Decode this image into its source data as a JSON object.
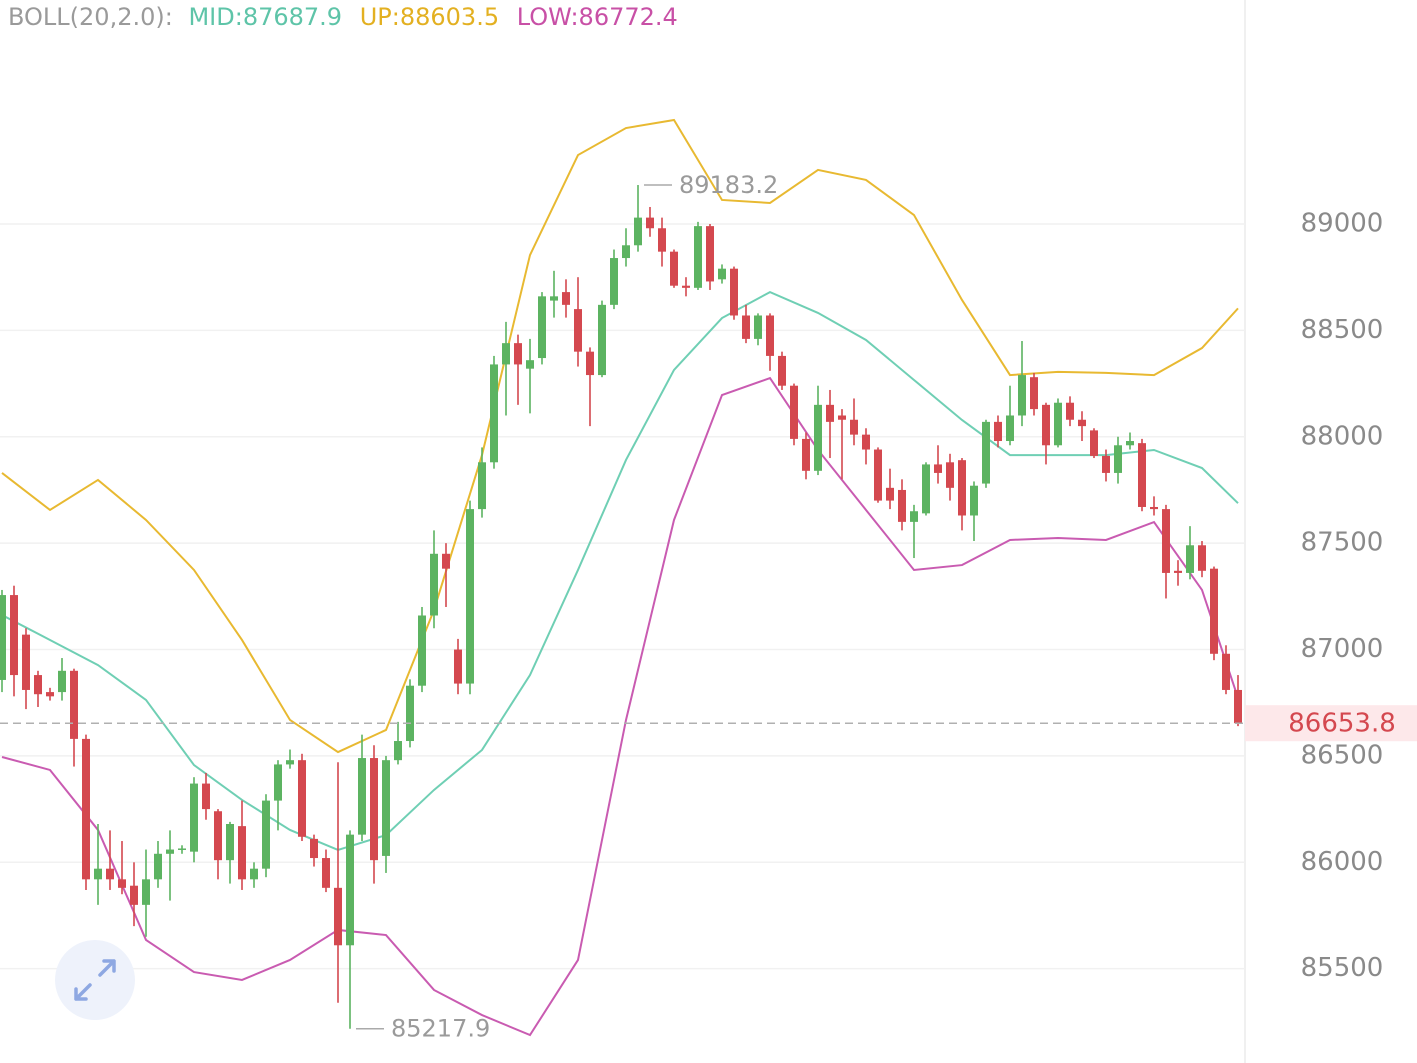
{
  "chart_data": {
    "type": "candlestick",
    "header": {
      "title": "BOLL(20,2.0):",
      "mid": "MID:87687.9",
      "up": "UP:88603.5",
      "low": "LOW:86772.4"
    },
    "ylim": [
      85056.7,
      90052.8
    ],
    "yticks": [
      85500,
      86000,
      86500,
      87000,
      87500,
      88000,
      88500,
      89000
    ],
    "grid": true,
    "up_color": "#5cb361",
    "down_color": "#d4484f",
    "ohlc": [
      [
        86857,
        87280,
        86800,
        87256
      ],
      [
        87256,
        87300,
        86780,
        86880
      ],
      [
        87070,
        87100,
        86720,
        86810
      ],
      [
        86880,
        86900,
        86730,
        86790
      ],
      [
        86800,
        86820,
        86760,
        86780
      ],
      [
        86800,
        86960,
        86760,
        86900
      ],
      [
        86900,
        86910,
        86450,
        86580
      ],
      [
        86580,
        86600,
        85870,
        85920
      ],
      [
        85920,
        86180,
        85800,
        85970
      ],
      [
        85970,
        86150,
        85870,
        85920
      ],
      [
        85920,
        86100,
        85850,
        85880
      ],
      [
        85890,
        86000,
        85700,
        85800
      ],
      [
        85800,
        86060,
        85650,
        85920
      ],
      [
        85920,
        86100,
        85880,
        86040
      ],
      [
        86040,
        86150,
        85820,
        86060
      ],
      [
        86060,
        86080,
        86040,
        86065
      ],
      [
        86050,
        86400,
        86000,
        86370
      ],
      [
        86370,
        86420,
        86200,
        86250
      ],
      [
        86240,
        86250,
        85920,
        86010
      ],
      [
        86010,
        86190,
        85900,
        86180
      ],
      [
        86170,
        86290,
        85870,
        85920
      ],
      [
        85920,
        86000,
        85880,
        85970
      ],
      [
        85970,
        86320,
        85930,
        86290
      ],
      [
        86290,
        86480,
        86150,
        86460
      ],
      [
        86460,
        86530,
        86440,
        86480
      ],
      [
        86480,
        86510,
        86100,
        86120
      ],
      [
        86110,
        86130,
        85980,
        86020
      ],
      [
        86020,
        86060,
        85860,
        85880
      ],
      [
        85880,
        86470,
        85340,
        85610
      ],
      [
        85610,
        86150,
        85217.9,
        86130
      ],
      [
        86130,
        86600,
        86100,
        86490
      ],
      [
        86490,
        86550,
        85900,
        86010
      ],
      [
        86030,
        86500,
        85950,
        86480
      ],
      [
        86480,
        86660,
        86460,
        86570
      ],
      [
        86570,
        86860,
        86540,
        86830
      ],
      [
        86830,
        87200,
        86800,
        87160
      ],
      [
        87160,
        87560,
        87100,
        87450
      ],
      [
        87450,
        87500,
        87200,
        87380
      ],
      [
        87000,
        87050,
        86790,
        86840
      ],
      [
        86840,
        87700,
        86790,
        87660
      ],
      [
        87660,
        87950,
        87620,
        87880
      ],
      [
        87880,
        88380,
        87850,
        88340
      ],
      [
        88340,
        88540,
        88100,
        88440
      ],
      [
        88440,
        88480,
        88150,
        88340
      ],
      [
        88320,
        88460,
        88110,
        88360
      ],
      [
        88370,
        88680,
        88340,
        88660
      ],
      [
        88640,
        88780,
        88560,
        88660
      ],
      [
        88680,
        88740,
        88560,
        88620
      ],
      [
        88600,
        88750,
        88330,
        88400
      ],
      [
        88400,
        88420,
        88050,
        88290
      ],
      [
        88290,
        88640,
        88280,
        88620
      ],
      [
        88620,
        88880,
        88600,
        88840
      ],
      [
        88840,
        88980,
        88800,
        88900
      ],
      [
        88900,
        89183.2,
        88870,
        89030
      ],
      [
        89030,
        89080,
        88940,
        88980
      ],
      [
        88980,
        89030,
        88800,
        88870
      ],
      [
        88870,
        88880,
        88700,
        88710
      ],
      [
        88710,
        88750,
        88660,
        88700
      ],
      [
        88700,
        89010,
        88690,
        88990
      ],
      [
        88990,
        89000,
        88690,
        88730
      ],
      [
        88740,
        88810,
        88720,
        88790
      ],
      [
        88790,
        88800,
        88550,
        88570
      ],
      [
        88570,
        88620,
        88440,
        88460
      ],
      [
        88460,
        88580,
        88430,
        88570
      ],
      [
        88570,
        88580,
        88310,
        88380
      ],
      [
        88380,
        88400,
        88220,
        88240
      ],
      [
        88240,
        88250,
        87960,
        87990
      ],
      [
        87990,
        88020,
        87800,
        87840
      ],
      [
        87840,
        88240,
        87820,
        88150
      ],
      [
        88150,
        88220,
        87900,
        88070
      ],
      [
        88100,
        88130,
        87800,
        88080
      ],
      [
        88080,
        88180,
        87960,
        88010
      ],
      [
        88010,
        88040,
        87870,
        87940
      ],
      [
        87940,
        87950,
        87690,
        87700
      ],
      [
        87760,
        87850,
        87660,
        87700
      ],
      [
        87750,
        87800,
        87560,
        87600
      ],
      [
        87600,
        87680,
        87430,
        87650
      ],
      [
        87640,
        87880,
        87630,
        87870
      ],
      [
        87870,
        87960,
        87780,
        87830
      ],
      [
        87880,
        87920,
        87700,
        87760
      ],
      [
        87890,
        87900,
        87560,
        87630
      ],
      [
        87630,
        87790,
        87510,
        87770
      ],
      [
        87780,
        88080,
        87760,
        88070
      ],
      [
        88070,
        88100,
        87950,
        87980
      ],
      [
        87980,
        88240,
        87960,
        88100
      ],
      [
        88100,
        88450,
        88050,
        88290
      ],
      [
        88280,
        88300,
        88100,
        88130
      ],
      [
        88150,
        88160,
        87870,
        87960
      ],
      [
        87960,
        88180,
        87950,
        88160
      ],
      [
        88160,
        88190,
        88050,
        88080
      ],
      [
        88080,
        88120,
        87980,
        88050
      ],
      [
        88030,
        88040,
        87900,
        87910
      ],
      [
        87910,
        87940,
        87790,
        87830
      ],
      [
        87830,
        88000,
        87780,
        87960
      ],
      [
        87960,
        88020,
        87940,
        87980
      ],
      [
        87970,
        87990,
        87650,
        87670
      ],
      [
        87670,
        87720,
        87630,
        87660
      ],
      [
        87660,
        87680,
        87240,
        87360
      ],
      [
        87370,
        87420,
        87300,
        87360
      ],
      [
        87360,
        87580,
        87330,
        87490
      ],
      [
        87490,
        87510,
        87340,
        87370
      ],
      [
        87380,
        87390,
        86950,
        86980
      ],
      [
        86980,
        87020,
        86790,
        86810
      ],
      [
        86810,
        86880,
        86640,
        86653.8
      ]
    ],
    "bands": [
      {
        "name": "UP",
        "color": "#e8b931",
        "x": [
          0,
          4,
          8,
          12,
          16,
          20,
          24,
          28,
          32,
          36,
          40,
          44,
          48,
          52,
          56,
          60,
          64,
          68,
          72,
          76,
          80,
          84,
          88,
          92,
          96,
          100,
          103
        ],
        "values": [
          87830,
          87656,
          87797,
          87609,
          87374,
          87045,
          86669,
          86518,
          86622,
          87186,
          87914,
          88854,
          89324,
          89451,
          89489,
          89113,
          89099,
          89254,
          89207,
          89042,
          88643,
          88290,
          88305,
          88300,
          88290,
          88417,
          88603.5
        ]
      },
      {
        "name": "MID",
        "color": "#6fcfb4",
        "x": [
          0,
          4,
          8,
          12,
          16,
          20,
          24,
          28,
          32,
          36,
          40,
          44,
          48,
          52,
          56,
          60,
          64,
          68,
          72,
          76,
          80,
          84,
          88,
          92,
          96,
          100,
          103
        ],
        "values": [
          87162,
          87045,
          86927,
          86763,
          86457,
          86293,
          86152,
          86058,
          86128,
          86340,
          86528,
          86880,
          87374,
          87891,
          88314,
          88558,
          88680,
          88582,
          88455,
          88267,
          88079,
          87914,
          87914,
          87914,
          87938,
          87853,
          87687.9
        ]
      },
      {
        "name": "LOW",
        "color": "#c95bb1",
        "x": [
          0,
          4,
          8,
          12,
          16,
          20,
          24,
          28,
          32,
          36,
          40,
          44,
          48,
          52,
          56,
          60,
          64,
          68,
          72,
          76,
          80,
          84,
          88,
          92,
          96,
          100,
          103
        ],
        "values": [
          86495,
          86434,
          86152,
          85635,
          85484,
          85447,
          85541,
          85682,
          85658,
          85400,
          85282,
          85188,
          85541,
          86669,
          87609,
          88196,
          88276,
          87938,
          87656,
          87374,
          87397,
          87515,
          87524,
          87515,
          87599,
          87280,
          86772.4
        ]
      }
    ],
    "max_marker": {
      "value": 89183.2,
      "label": "89183.2"
    },
    "min_marker": {
      "value": 85217.9,
      "label": "85217.9"
    },
    "last_price": {
      "value": 86653.8,
      "label": "86653.8"
    }
  }
}
